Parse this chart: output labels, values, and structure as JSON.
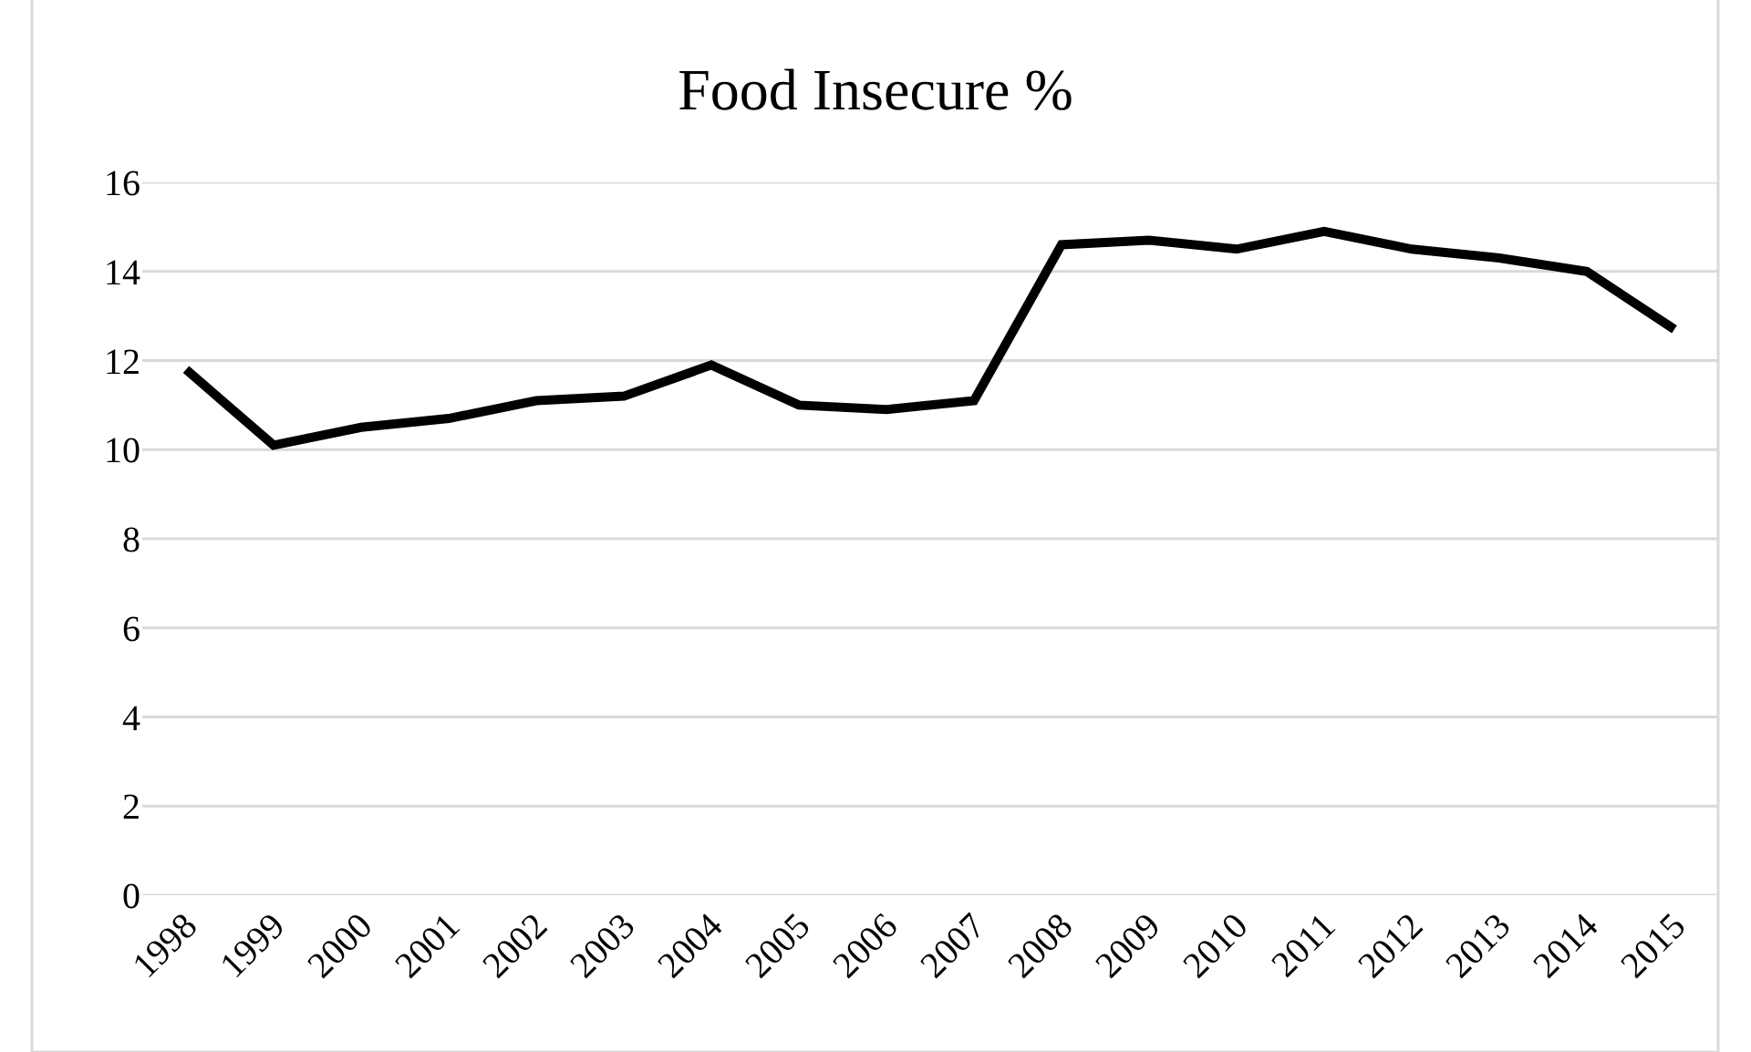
{
  "chart_data": {
    "type": "line",
    "title": "Food Insecure %",
    "categories": [
      "1998",
      "1999",
      "2000",
      "2001",
      "2002",
      "2003",
      "2004",
      "2005",
      "2006",
      "2007",
      "2008",
      "2009",
      "2010",
      "2011",
      "2012",
      "2013",
      "2014",
      "2015"
    ],
    "series": [
      {
        "color": "#000000",
        "values": [
          11.8,
          10.1,
          10.5,
          10.7,
          11.1,
          11.2,
          11.9,
          11.0,
          10.9,
          11.1,
          14.6,
          14.7,
          14.5,
          14.9,
          14.5,
          14.3,
          14.0,
          12.7
        ]
      }
    ],
    "ylim": [
      0,
      16
    ],
    "yticks": [
      0,
      2,
      4,
      6,
      8,
      10,
      12,
      14,
      16
    ],
    "grid": "y",
    "marker": "none",
    "line_style": "solid"
  }
}
